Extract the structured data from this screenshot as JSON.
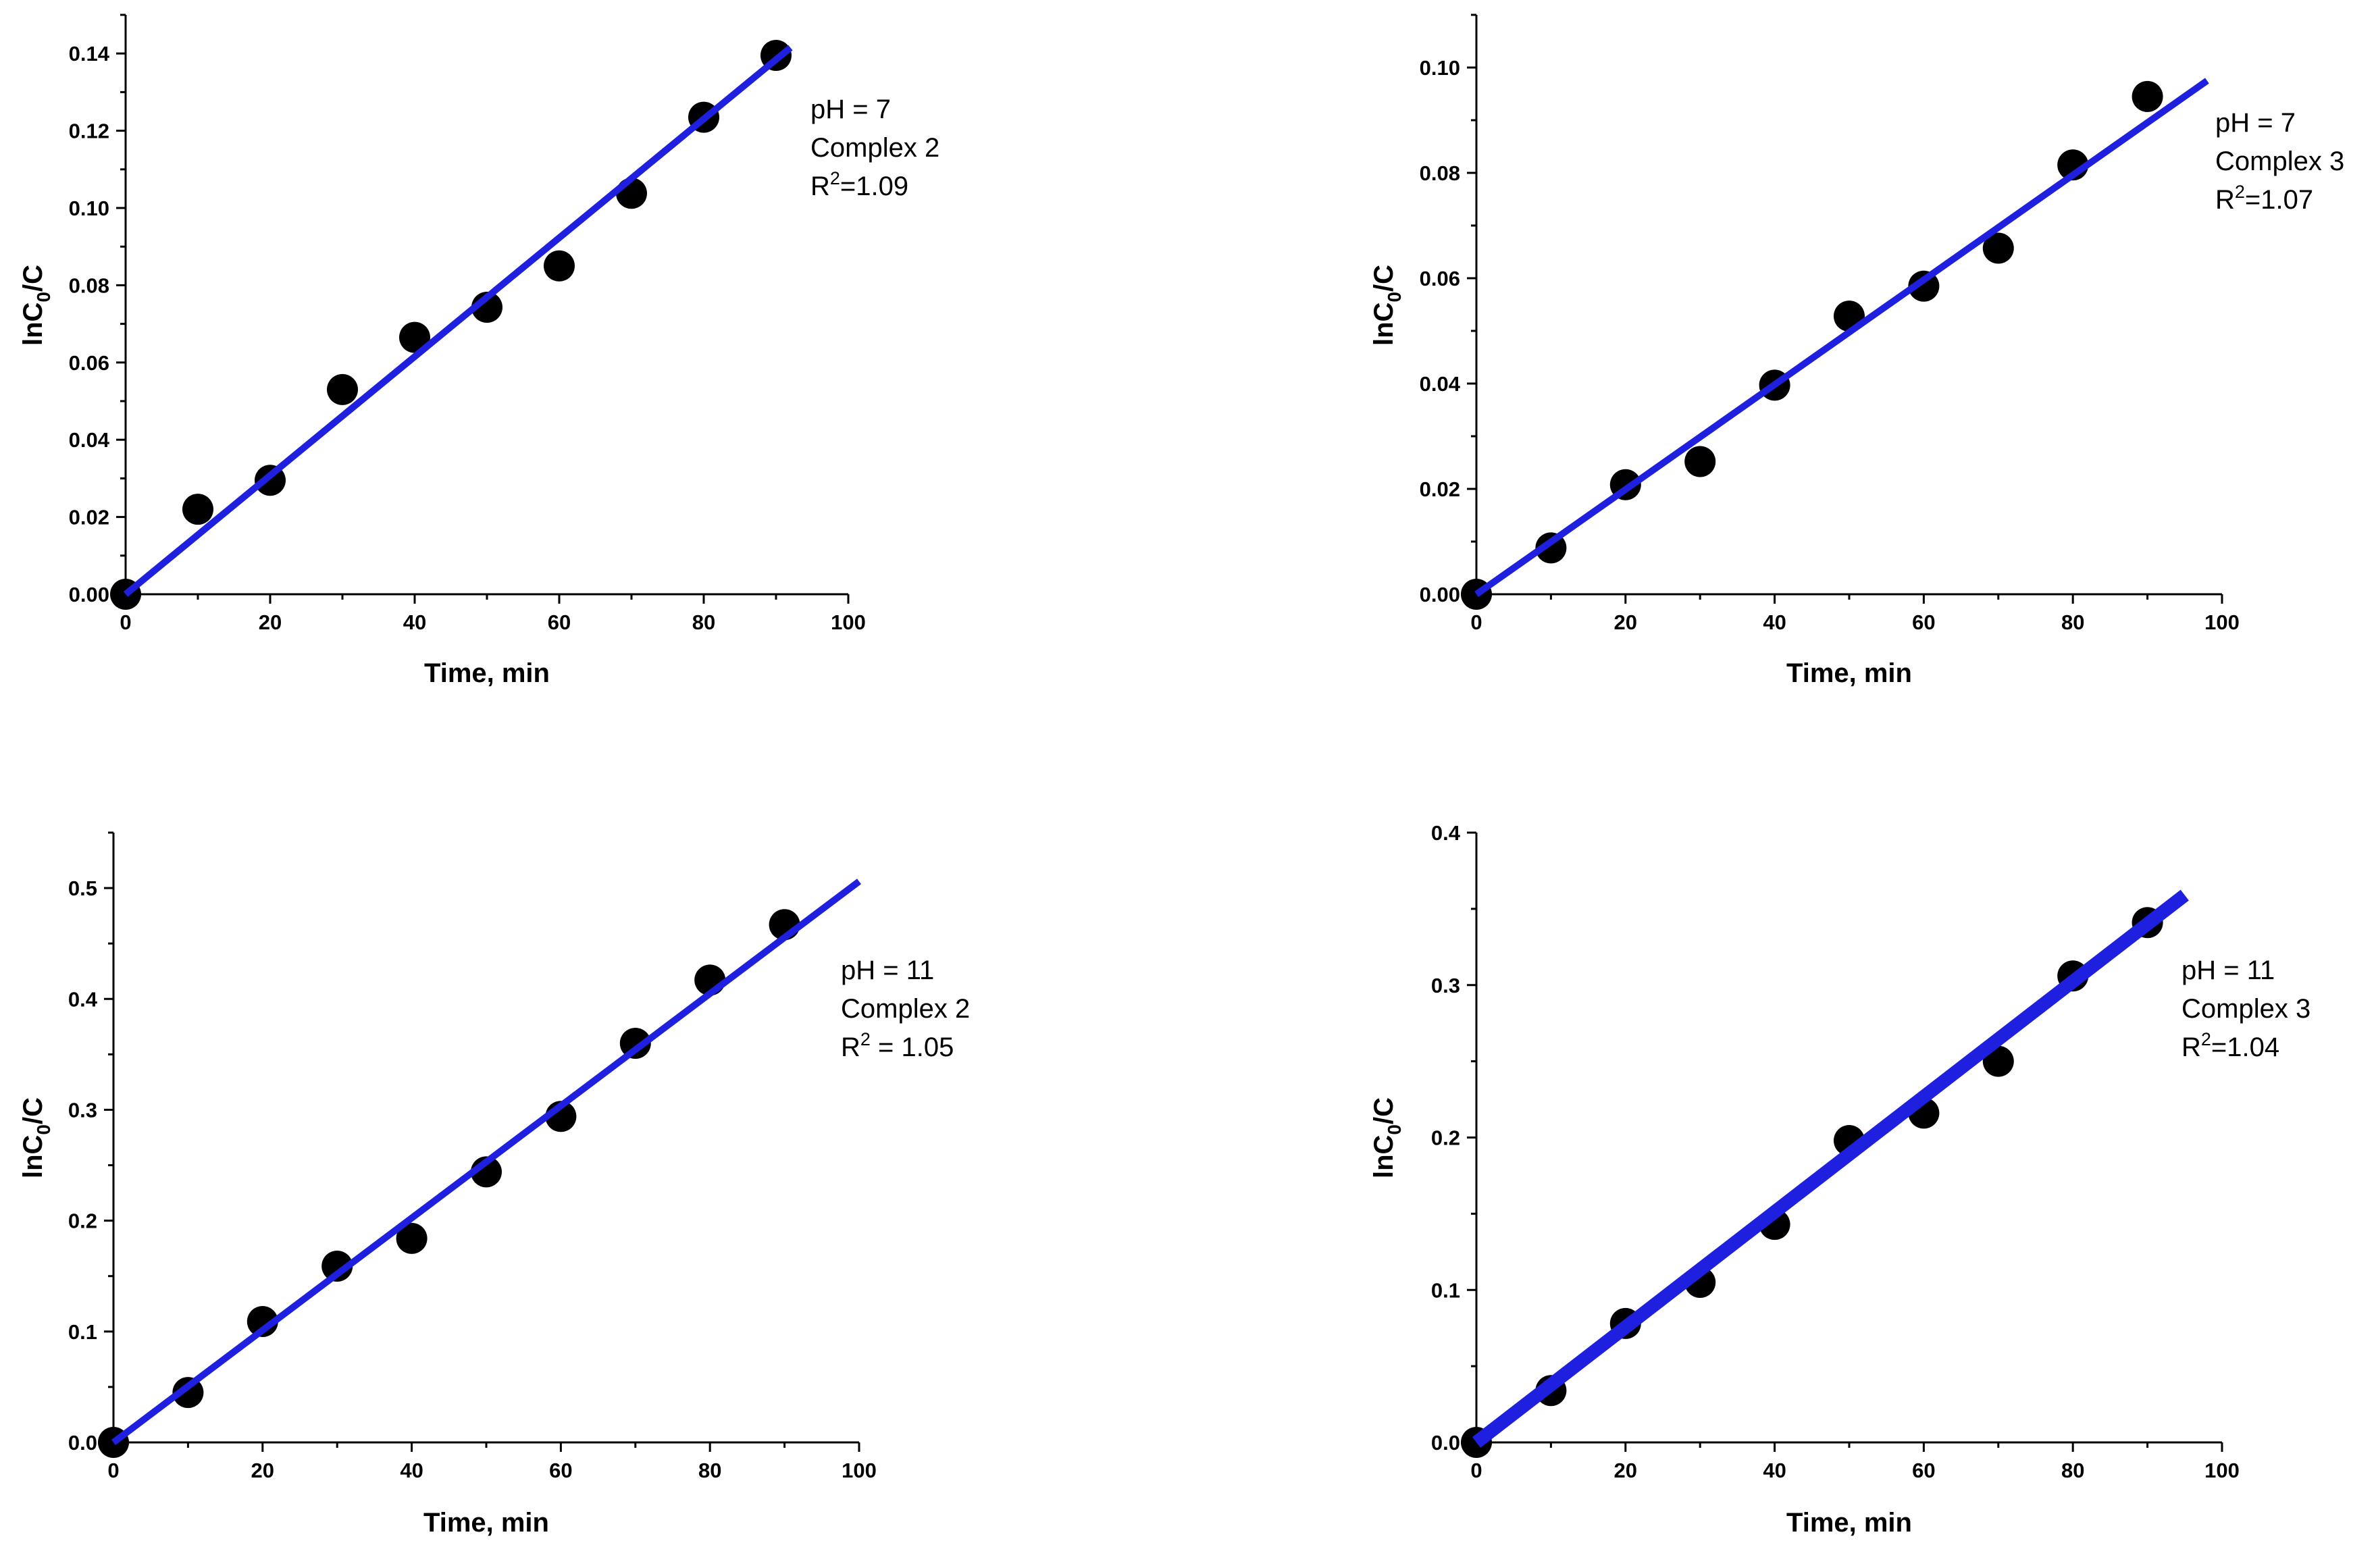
{
  "chart_data": [
    {
      "type": "scatter",
      "xlabel": "Time, min",
      "ylabel_main": "lnC",
      "ylabel_sub": "0",
      "ylabel_tail": "/C",
      "xlim": [
        0,
        100
      ],
      "ylim": [
        0,
        0.15
      ],
      "xticks": [
        0,
        20,
        40,
        60,
        80,
        100
      ],
      "yticks": [
        0,
        0.02,
        0.04,
        0.06,
        0.08,
        0.1,
        0.12,
        0.14
      ],
      "ytick_labels": [
        "0.00",
        "0.02",
        "0.04",
        "0.06",
        "0.08",
        "0.10",
        "0.12",
        "0.14"
      ],
      "x": [
        0,
        10,
        20,
        30,
        40,
        50,
        60,
        70,
        80,
        90
      ],
      "y": [
        0,
        0.022,
        0.0295,
        0.053,
        0.0665,
        0.0743,
        0.085,
        0.1038,
        0.1235,
        0.1395
      ],
      "fit": {
        "x0": 0,
        "y0": 0,
        "x1": 92,
        "y1": 0.1415
      },
      "annotation": {
        "line1": "pH = 7",
        "line2": "Complex 2",
        "r_prefix": "R",
        "r_sup": "2",
        "r_value": "=1.09"
      },
      "colors": {
        "points": "#000000",
        "fit": "#1f1fe0"
      }
    },
    {
      "type": "scatter",
      "xlabel": "Time, min",
      "ylabel_main": "lnC",
      "ylabel_sub": "0",
      "ylabel_tail": "/C",
      "xlim": [
        0,
        100
      ],
      "ylim": [
        0,
        0.11
      ],
      "xticks": [
        0,
        20,
        40,
        60,
        80,
        100
      ],
      "yticks": [
        0,
        0.02,
        0.04,
        0.06,
        0.08,
        0.1
      ],
      "ytick_labels": [
        "0.00",
        "0.02",
        "0.04",
        "0.06",
        "0.08",
        "0.10"
      ],
      "x": [
        0,
        10,
        20,
        30,
        40,
        50,
        60,
        70,
        80,
        90
      ],
      "y": [
        0,
        0.0088,
        0.0208,
        0.0252,
        0.0397,
        0.0528,
        0.0585,
        0.0657,
        0.0815,
        0.0945
      ],
      "fit": {
        "x0": 0,
        "y0": 0,
        "x1": 98,
        "y1": 0.0975
      },
      "annotation": {
        "line1": "pH = 7",
        "line2": "Complex 3",
        "r_prefix": "R",
        "r_sup": "2",
        "r_value": "=1.07"
      },
      "colors": {
        "points": "#000000",
        "fit": "#1f1fe0"
      }
    },
    {
      "type": "scatter",
      "xlabel": "Time, min",
      "ylabel_main": "lnC",
      "ylabel_sub": "0",
      "ylabel_tail": "/C",
      "xlim": [
        0,
        100
      ],
      "ylim": [
        0,
        0.55
      ],
      "xticks": [
        0,
        20,
        40,
        60,
        80,
        100
      ],
      "yticks": [
        0,
        0.1,
        0.2,
        0.3,
        0.4,
        0.5
      ],
      "ytick_labels": [
        "0.0",
        "0.1",
        "0.2",
        "0.3",
        "0.4",
        "0.5"
      ],
      "x": [
        0,
        10,
        20,
        30,
        40,
        50,
        60,
        70,
        80,
        90
      ],
      "y": [
        0,
        0.045,
        0.109,
        0.159,
        0.184,
        0.244,
        0.294,
        0.36,
        0.417,
        0.467
      ],
      "fit": {
        "x0": 0,
        "y0": 0,
        "x1": 100,
        "y1": 0.506
      },
      "annotation": {
        "line1": "pH = 11",
        "line2": "Complex 2",
        "r_prefix": "R",
        "r_sup": "2",
        "r_value": " = 1.05"
      },
      "colors": {
        "points": "#000000",
        "fit": "#1f1fe0"
      }
    },
    {
      "type": "scatter",
      "xlabel": "Time, min",
      "ylabel_main": "lnC",
      "ylabel_sub": "0",
      "ylabel_tail": "/C",
      "xlim": [
        0,
        100
      ],
      "ylim": [
        0,
        0.4
      ],
      "xticks": [
        0,
        20,
        40,
        60,
        80,
        100
      ],
      "yticks": [
        0,
        0.1,
        0.2,
        0.3,
        0.4
      ],
      "ytick_labels": [
        "0.0",
        "0.1",
        "0.2",
        "0.3",
        "0.4"
      ],
      "x": [
        0,
        10,
        20,
        30,
        40,
        50,
        60,
        70,
        80,
        90
      ],
      "y": [
        0,
        0.034,
        0.078,
        0.105,
        0.143,
        0.198,
        0.216,
        0.25,
        0.306,
        0.341
      ],
      "fit": {
        "x0": 0,
        "y0": 0,
        "x1": 95,
        "y1": 0.359
      },
      "annotation": {
        "line1": "pH = 11",
        "line2": "Complex 3",
        "r_prefix": "R",
        "r_sup": "2",
        "r_value": "=1.04"
      },
      "colors": {
        "points": "#000000",
        "fit": "#1f1fe0"
      }
    }
  ]
}
